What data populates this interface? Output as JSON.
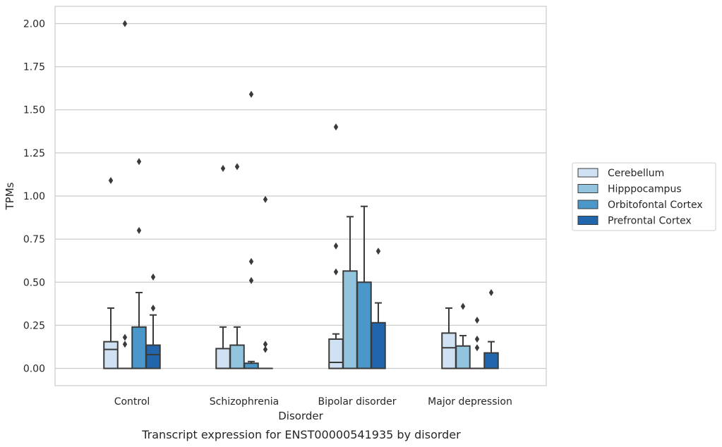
{
  "chart_data": {
    "type": "box",
    "caption": "Transcript expression for ENST00000541935 by disorder",
    "xlabel": "Disorder",
    "ylabel": "TPMs",
    "ylim": [
      -0.1,
      2.1
    ],
    "yticks": [
      0.0,
      0.25,
      0.5,
      0.75,
      1.0,
      1.25,
      1.5,
      1.75,
      2.0
    ],
    "ytick_labels": [
      "0.00",
      "0.25",
      "0.50",
      "0.75",
      "1.00",
      "1.25",
      "1.50",
      "1.75",
      "2.00"
    ],
    "grid": "horizontal",
    "legend_position": "right",
    "categories": [
      "Control",
      "Schizophrenia",
      "Bipolar disorder",
      "Major depression"
    ],
    "series": [
      {
        "name": "Cerebellum",
        "color": "#cfe1f2",
        "boxes": [
          {
            "q1": 0.0,
            "median": 0.11,
            "q3": 0.155,
            "whisker_low": 0.0,
            "whisker_high": 0.35,
            "outliers": [
              1.09
            ]
          },
          {
            "q1": 0.0,
            "median": 0.0,
            "q3": 0.115,
            "whisker_low": 0.0,
            "whisker_high": 0.24,
            "outliers": [
              1.16
            ]
          },
          {
            "q1": 0.0,
            "median": 0.035,
            "q3": 0.17,
            "whisker_low": 0.0,
            "whisker_high": 0.2,
            "outliers": [
              0.56,
              0.71,
              1.4
            ]
          },
          {
            "q1": 0.0,
            "median": 0.12,
            "q3": 0.205,
            "whisker_low": 0.0,
            "whisker_high": 0.35,
            "outliers": []
          }
        ]
      },
      {
        "name": "Hipppocampus",
        "color": "#93c4de",
        "boxes": [
          {
            "q1": 0.0,
            "median": 0.0,
            "q3": 0.0,
            "whisker_low": 0.0,
            "whisker_high": 0.0,
            "outliers": [
              0.14,
              0.18,
              2.0
            ]
          },
          {
            "q1": 0.0,
            "median": 0.0,
            "q3": 0.135,
            "whisker_low": 0.0,
            "whisker_high": 0.24,
            "outliers": [
              1.17
            ]
          },
          {
            "q1": 0.0,
            "median": 0.0,
            "q3": 0.565,
            "whisker_low": 0.0,
            "whisker_high": 0.88,
            "outliers": []
          },
          {
            "q1": 0.0,
            "median": 0.0,
            "q3": 0.13,
            "whisker_low": 0.0,
            "whisker_high": 0.19,
            "outliers": [
              0.36
            ]
          }
        ]
      },
      {
        "name": "Orbitofontal Cortex",
        "color": "#4a98c9",
        "boxes": [
          {
            "q1": 0.0,
            "median": 0.0,
            "q3": 0.24,
            "whisker_low": 0.0,
            "whisker_high": 0.44,
            "outliers": [
              0.8,
              1.2
            ]
          },
          {
            "q1": 0.0,
            "median": 0.0,
            "q3": 0.03,
            "whisker_low": 0.0,
            "whisker_high": 0.04,
            "outliers": [
              0.51,
              0.62,
              1.59
            ]
          },
          {
            "q1": 0.0,
            "median": 0.0,
            "q3": 0.5,
            "whisker_low": 0.0,
            "whisker_high": 0.94,
            "outliers": []
          },
          {
            "q1": 0.0,
            "median": 0.0,
            "q3": 0.0,
            "whisker_low": 0.0,
            "whisker_high": 0.0,
            "outliers": [
              0.12,
              0.17,
              0.28
            ]
          }
        ]
      },
      {
        "name": "Prefrontal Cortex",
        "color": "#2166ac",
        "boxes": [
          {
            "q1": 0.0,
            "median": 0.08,
            "q3": 0.135,
            "whisker_low": 0.0,
            "whisker_high": 0.31,
            "outliers": [
              0.35,
              0.53
            ]
          },
          {
            "q1": 0.0,
            "median": 0.0,
            "q3": 0.0,
            "whisker_low": 0.0,
            "whisker_high": 0.0,
            "outliers": [
              0.11,
              0.14,
              0.98
            ]
          },
          {
            "q1": 0.0,
            "median": 0.0,
            "q3": 0.265,
            "whisker_low": 0.0,
            "whisker_high": 0.38,
            "outliers": [
              0.68
            ]
          },
          {
            "q1": 0.0,
            "median": 0.0,
            "q3": 0.09,
            "whisker_low": 0.0,
            "whisker_high": 0.155,
            "outliers": [
              0.44
            ]
          }
        ]
      }
    ]
  }
}
